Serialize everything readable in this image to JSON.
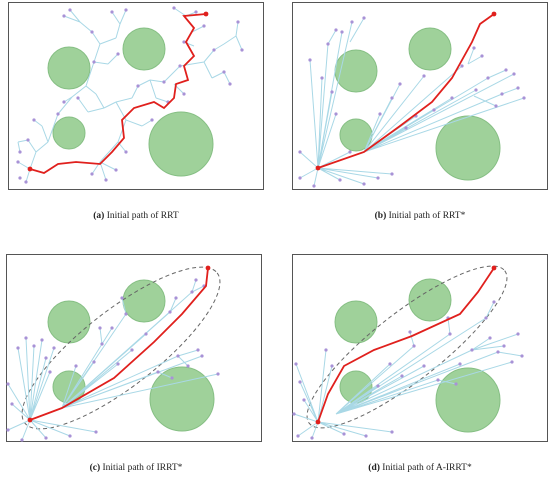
{
  "figure": {
    "panels": [
      {
        "id": "a",
        "letter": "(a)",
        "caption": "Initial path of RRT"
      },
      {
        "id": "b",
        "letter": "(b)",
        "caption": "Initial path of RRT*"
      },
      {
        "id": "c",
        "letter": "(c)",
        "caption": "Initial path of IRRT*"
      },
      {
        "id": "d",
        "letter": "(d)",
        "caption": "Initial path of A-IRRT*"
      }
    ]
  },
  "colors": {
    "tree_edge": "#a9d8e6",
    "tree_node": "#a892d6",
    "path": "#e0201d",
    "obstacle_fill": "#9fd19a",
    "obstacle_stroke": "#86bf84",
    "ellipse": "#666666",
    "frame": "#555555"
  },
  "icons": {
    "obstacle": "green-circle",
    "node": "purple-dot",
    "ellipse": "dashed-ellipse"
  }
}
